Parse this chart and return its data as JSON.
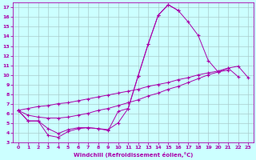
{
  "xlabel": "Windchill (Refroidissement éolien,°C)",
  "bg_color": "#ccffff",
  "line_color": "#aa00aa",
  "grid_color": "#aacccc",
  "xlim": [
    -0.5,
    23.5
  ],
  "ylim": [
    3,
    17.5
  ],
  "yticks": [
    3,
    4,
    5,
    6,
    7,
    8,
    9,
    10,
    11,
    12,
    13,
    14,
    15,
    16,
    17
  ],
  "xticks": [
    0,
    1,
    2,
    3,
    4,
    5,
    6,
    7,
    8,
    9,
    10,
    11,
    12,
    13,
    14,
    15,
    16,
    17,
    18,
    19,
    20,
    21,
    22,
    23
  ],
  "series": [
    {
      "x": [
        0,
        1,
        2,
        3,
        4,
        5,
        6,
        7,
        8,
        9,
        10,
        11,
        12,
        13,
        14,
        15,
        16,
        17,
        18,
        19,
        20,
        21
      ],
      "y": [
        6.3,
        5.2,
        5.2,
        4.4,
        3.9,
        4.3,
        4.5,
        4.5,
        4.4,
        4.2,
        6.2,
        6.5,
        9.9,
        13.2,
        16.2,
        17.3,
        16.7,
        15.5,
        14.1,
        11.5,
        10.3,
        10.5
      ]
    },
    {
      "x": [
        0,
        1,
        2,
        3,
        4,
        5,
        6,
        7,
        8,
        9,
        10,
        11,
        12,
        13,
        14,
        15,
        16
      ],
      "y": [
        6.3,
        5.2,
        5.2,
        3.7,
        3.5,
        4.1,
        4.4,
        4.5,
        4.4,
        4.3,
        5.0,
        6.5,
        9.9,
        13.2,
        16.2,
        17.3,
        16.7
      ]
    },
    {
      "x": [
        0,
        1,
        2,
        3,
        4,
        5,
        6,
        7,
        8,
        9,
        10,
        11,
        12,
        13,
        14,
        15,
        16,
        17,
        18,
        19,
        20,
        21,
        22,
        23
      ],
      "y": [
        6.3,
        6.5,
        6.7,
        6.8,
        7.0,
        7.1,
        7.3,
        7.5,
        7.7,
        7.9,
        8.1,
        8.3,
        8.5,
        8.8,
        9.0,
        9.2,
        9.5,
        9.7,
        10.0,
        10.2,
        10.4,
        10.7,
        10.9,
        9.7
      ]
    },
    {
      "x": [
        0,
        1,
        2,
        3,
        4,
        5,
        6,
        7,
        8,
        9,
        10,
        11,
        12,
        13,
        14,
        15,
        16,
        17,
        18,
        19,
        20,
        21,
        22,
        23
      ],
      "y": [
        6.3,
        5.8,
        5.6,
        5.5,
        5.5,
        5.6,
        5.8,
        6.0,
        6.3,
        6.5,
        6.8,
        7.1,
        7.4,
        7.8,
        8.1,
        8.5,
        8.8,
        9.2,
        9.6,
        10.0,
        10.3,
        10.7,
        9.8,
        null
      ]
    }
  ]
}
